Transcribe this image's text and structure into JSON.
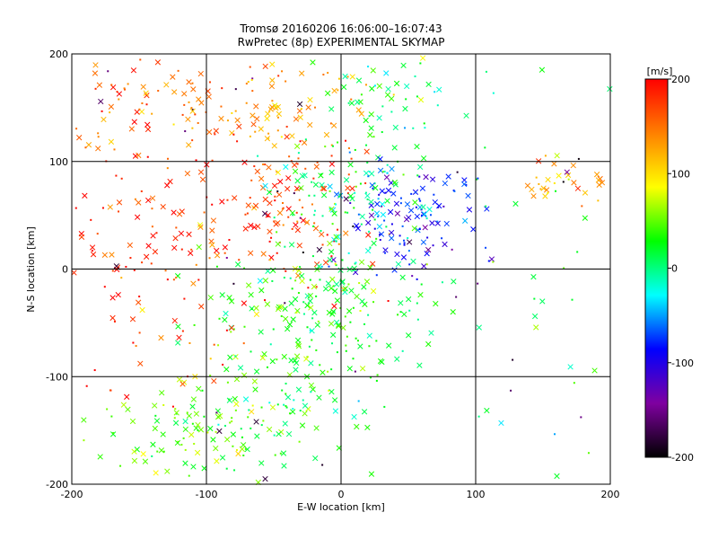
{
  "chart_data": {
    "type": "scatter",
    "title": "Tromsø 20160206 16:06:00–16:07:43",
    "subtitle": "RwPretec (8p) EXPERIMENTAL SKYMAP",
    "xlabel": "E-W location [km]",
    "ylabel": "N-S location [km]",
    "xlim": [
      -200,
      200
    ],
    "ylim": [
      -200,
      200
    ],
    "x_ticks": [
      "-200",
      "-100",
      "0",
      "100",
      "200"
    ],
    "y_ticks": [
      "-200",
      "-100",
      "0",
      "100",
      "200"
    ],
    "grid": true,
    "marker_types": [
      "cross",
      "dot"
    ],
    "colorbar": {
      "label": "[m/s]",
      "range": [
        -200,
        200
      ],
      "ticks": [
        "200",
        "100",
        "0",
        "-100",
        "-200"
      ],
      "colors": [
        "#000000",
        "#7f00a0",
        "#0000ff",
        "#00ffff",
        "#00ff00",
        "#ffff00",
        "#ff8000",
        "#ff0000"
      ]
    },
    "clusters": [
      {
        "center": [
          -150,
          160
        ],
        "spread": [
          35,
          25
        ],
        "velocity": 150,
        "count": 60
      },
      {
        "center": [
          -55,
          150
        ],
        "spread": [
          45,
          25
        ],
        "velocity": 130,
        "count": 90
      },
      {
        "center": [
          -120,
          50
        ],
        "spread": [
          55,
          45
        ],
        "velocity": 185,
        "count": 130
      },
      {
        "center": [
          -40,
          60
        ],
        "spread": [
          30,
          40
        ],
        "velocity": 170,
        "count": 90
      },
      {
        "center": [
          40,
          140
        ],
        "spread": [
          30,
          30
        ],
        "velocity": 10,
        "count": 60
      },
      {
        "center": [
          50,
          50
        ],
        "spread": [
          25,
          25
        ],
        "velocity": -80,
        "count": 120
      },
      {
        "center": [
          5,
          70
        ],
        "spread": [
          25,
          35
        ],
        "velocity": 10,
        "count": 100
      },
      {
        "center": [
          -20,
          -40
        ],
        "spread": [
          35,
          40
        ],
        "velocity": 30,
        "count": 220
      },
      {
        "center": [
          -110,
          -150
        ],
        "spread": [
          35,
          25
        ],
        "velocity": 50,
        "count": 110
      },
      {
        "center": [
          -40,
          -140
        ],
        "spread": [
          30,
          25
        ],
        "velocity": 20,
        "count": 60
      },
      {
        "center": [
          170,
          85
        ],
        "spread": [
          20,
          12
        ],
        "velocity": 135,
        "count": 35
      },
      {
        "center": [
          130,
          -30
        ],
        "spread": [
          70,
          90
        ],
        "velocity": 10,
        "count": 50
      },
      {
        "center": [
          -150,
          -50
        ],
        "spread": [
          40,
          60
        ],
        "velocity": 175,
        "count": 50
      }
    ]
  }
}
